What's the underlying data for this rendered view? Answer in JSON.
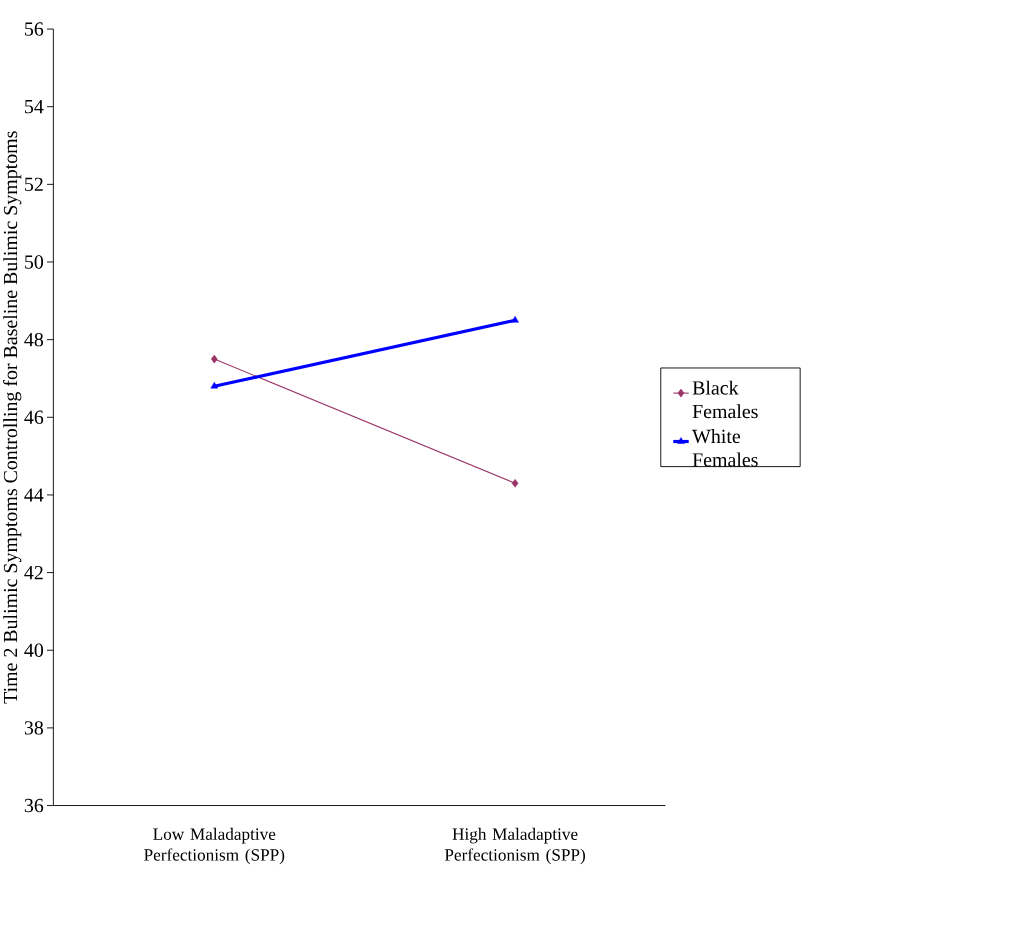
{
  "chart_data": {
    "type": "line",
    "ylabel": "Time 2 Bulimic Symptoms Controlling for Baseline Bulimic Symptoms",
    "categories": [
      "Low Maladaptive Perfectionism (SPP)",
      "High Maladaptive Perfectionism (SPP)"
    ],
    "series": [
      {
        "name": "Black Females",
        "color": "#993366",
        "values": [
          47.5,
          44.3
        ],
        "marker": "diamond"
      },
      {
        "name": "White Females",
        "color": "#0000ff",
        "values": [
          46.8,
          48.5
        ],
        "marker": "triangle"
      }
    ],
    "ylim": [
      36,
      56
    ],
    "yticks": [
      36,
      38,
      40,
      42,
      44,
      46,
      48,
      50,
      52,
      54,
      56
    ],
    "grid": false,
    "legend": "right"
  }
}
